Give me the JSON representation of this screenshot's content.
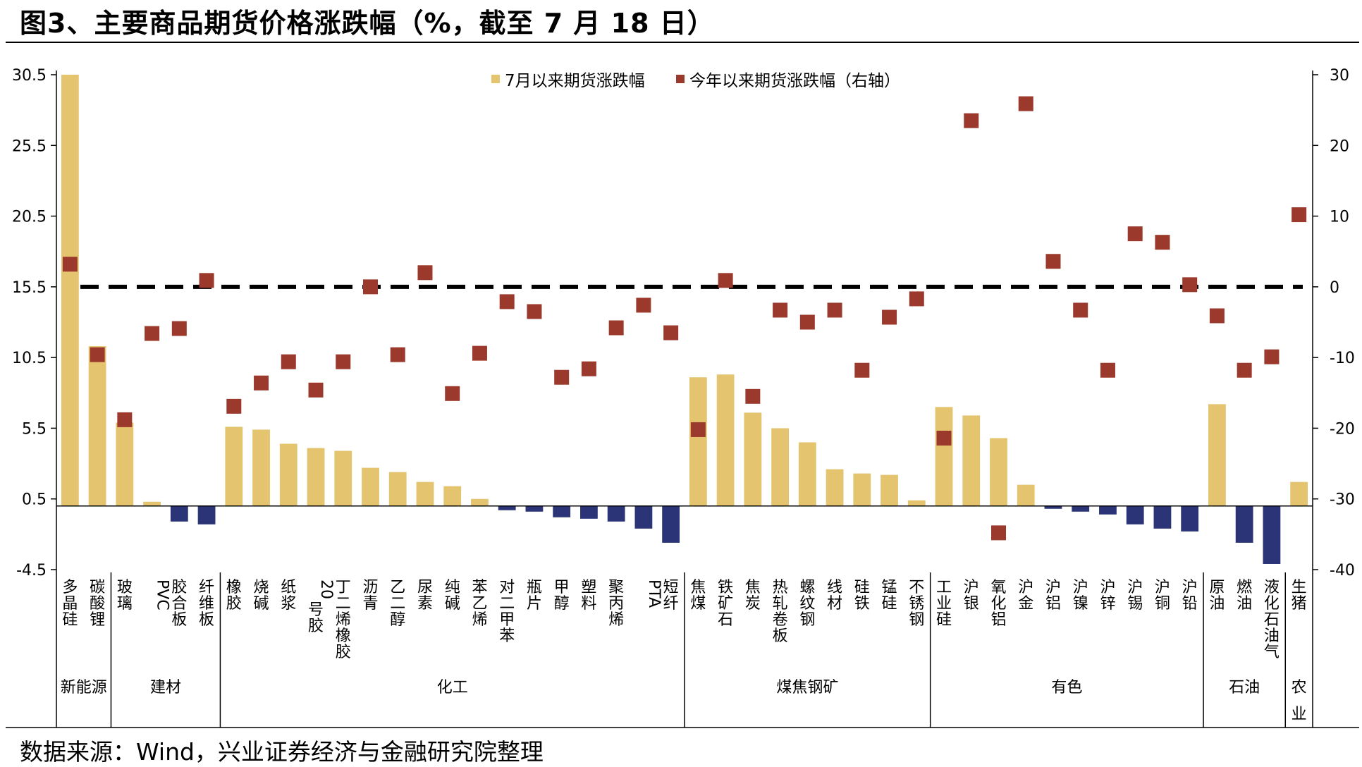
{
  "figure": {
    "title": "图3、主要商品期货价格涨跌幅（%，截至 7 月 18 日）",
    "source": "数据来源：Wind，兴业证券经济与金融研究院整理"
  },
  "chart_data": {
    "type": "bar",
    "left_axis": {
      "ticks": [
        "30.5",
        "25.5",
        "20.5",
        "15.5",
        "10.5",
        "5.5",
        "0.5",
        "-4.5"
      ],
      "ylim": [
        -4.5,
        30.5
      ]
    },
    "right_axis": {
      "ticks": [
        "30",
        "20",
        "10",
        "0",
        "-10",
        "-20",
        "-30",
        "-40"
      ],
      "ylim": [
        -40,
        30
      ]
    },
    "colors": {
      "positive_bar": "#E5C46F",
      "negative_bar": "#2B3476",
      "marker": "#9B3A2C",
      "zero_line": "#000000",
      "axis": "#000000"
    },
    "legend": {
      "placement": "top-center",
      "bars": "7月以来期货涨跌幅",
      "markers": "今年以来期货涨跌幅（右轴）"
    },
    "categories": [
      "多晶硅",
      "碳酸锂",
      "玻璃",
      "PVC",
      "胶合板",
      "纤维板",
      "橡胶",
      "烧碱",
      "纸浆",
      "20号胶",
      "丁二烯橡胶",
      "沥青",
      "乙二醇",
      "尿素",
      "纯碱",
      "苯乙烯",
      "对二甲苯",
      "瓶片",
      "甲醇",
      "塑料",
      "聚丙烯",
      "PTA",
      "短纤",
      "焦煤",
      "铁矿石",
      "焦炭",
      "热轧卷板",
      "螺纹钢",
      "线材",
      "硅铁",
      "锰硅",
      "不锈钢",
      "工业硅",
      "沪银",
      "氧化铝",
      "沪金",
      "沪铝",
      "沪镍",
      "沪锌",
      "沪锡",
      "沪铜",
      "沪铅",
      "原油",
      "燃油",
      "液化石油气",
      "生猪"
    ],
    "groups": [
      {
        "name": "新能源",
        "count": 2
      },
      {
        "name": "建材",
        "count": 4
      },
      {
        "name": "化工",
        "count": 17
      },
      {
        "name": "煤焦钢矿",
        "count": 9
      },
      {
        "name": "有色",
        "count": 10
      },
      {
        "name": "石油",
        "count": 3
      },
      {
        "name": "农业",
        "count": 1
      }
    ],
    "series": [
      {
        "name": "7月以来期货涨跌幅",
        "kind": "bar",
        "axis": "left",
        "values": [
          30.5,
          11.3,
          5.9,
          0.3,
          -1.1,
          -1.3,
          5.6,
          5.4,
          4.4,
          4.1,
          3.9,
          2.7,
          2.4,
          1.7,
          1.4,
          0.5,
          -0.3,
          -0.4,
          -0.8,
          -0.9,
          -1.1,
          -1.6,
          -2.6,
          9.1,
          9.3,
          6.6,
          5.5,
          4.5,
          2.6,
          2.3,
          2.2,
          0.4,
          7.0,
          6.4,
          4.8,
          1.5,
          -0.2,
          -0.4,
          -0.6,
          -1.3,
          -1.6,
          -1.8,
          7.2,
          -2.6,
          -4.1,
          1.7
        ]
      },
      {
        "name": "今年以来期货涨跌幅（右轴）",
        "kind": "marker",
        "axis": "right",
        "values": [
          3.2,
          -9.6,
          -18.8,
          -6.6,
          -5.9,
          0.9,
          -16.9,
          -13.6,
          -10.6,
          -14.6,
          -10.6,
          0.0,
          -9.6,
          2.0,
          -15.1,
          -9.4,
          -2.1,
          -3.5,
          -12.8,
          -11.6,
          -5.8,
          -2.6,
          -6.5,
          -20.2,
          0.9,
          -15.5,
          -3.3,
          -5.0,
          -3.3,
          -11.8,
          -4.3,
          -1.7,
          -21.4,
          23.5,
          -34.8,
          25.9,
          3.6,
          -3.3,
          -11.8,
          7.5,
          6.3,
          0.3,
          -4.1,
          -11.8,
          -9.9,
          10.2
        ]
      }
    ]
  }
}
